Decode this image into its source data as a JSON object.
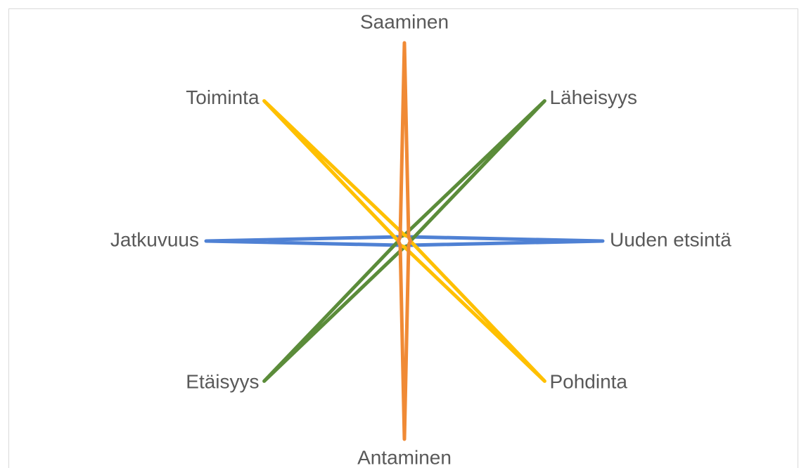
{
  "chart_data": {
    "type": "radar",
    "categories": [
      "Saaminen",
      "Läheisyys",
      "Uuden etsintä",
      "Pohdinta",
      "Antaminen",
      "Etäisyys",
      "Jatkuvuus",
      "Toiminta"
    ],
    "rlim": [
      0,
      1
    ],
    "series": [
      {
        "color": "#4f81d4",
        "values": [
          0.03,
          0.03,
          1,
          0.03,
          0.03,
          0.03,
          1,
          0.03
        ]
      },
      {
        "color": "#5b8c3a",
        "values": [
          0.03,
          1,
          0.03,
          0.03,
          0.03,
          1,
          0.03,
          0.03
        ]
      },
      {
        "color": "#ffc000",
        "values": [
          0.03,
          0.03,
          0.03,
          1,
          0.03,
          0.03,
          0.03,
          1
        ]
      },
      {
        "color": "#f08a35",
        "values": [
          1,
          0.03,
          0.03,
          0.03,
          1,
          0.03,
          0.03,
          0.03
        ]
      }
    ]
  }
}
